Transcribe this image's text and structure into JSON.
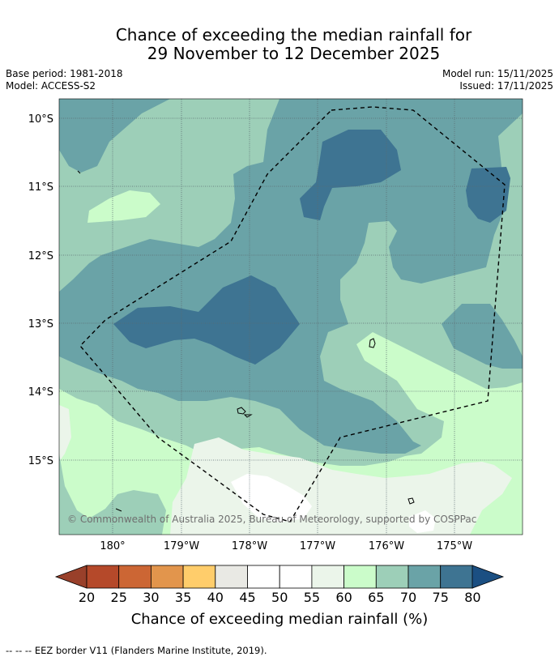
{
  "title": {
    "line1": "Chance of exceeding the median rainfall for",
    "line2": "29 November to 12 December 2025"
  },
  "meta": {
    "base_period": "Base period: 1981-2018",
    "model": "Model: ACCESS-S2",
    "model_run": "Model run: 15/11/2025",
    "issued": "Issued: 17/11/2025"
  },
  "map": {
    "lat_labels": [
      "10°S",
      "11°S",
      "12°S",
      "13°S",
      "14°S",
      "15°S"
    ],
    "lon_labels": [
      "180°",
      "179°W",
      "178°W",
      "177°W",
      "176°W",
      "175°W"
    ],
    "copyright": "© Commonwealth of Australia 2025, Bureau of Meteorology, supported by COSPPac",
    "legend_label": "EEZ border V11 (Flanders Marine Institute, 2019)."
  },
  "colorbar": {
    "ticks": [
      "20",
      "25",
      "30",
      "35",
      "40",
      "45",
      "50",
      "55",
      "60",
      "65",
      "70",
      "75",
      "80"
    ],
    "colors": [
      "#b5492a",
      "#cc6634",
      "#e2954c",
      "#ffcd6b",
      "#e9e9e4",
      "#ffffff",
      "#ffffff",
      "#ebf5ea",
      "#cbfcca",
      "#9dcfb8",
      "#6aa3a7",
      "#3e7492"
    ],
    "under_color": "#99402a",
    "over_color": "#1b4f82",
    "label": "Chance of exceeding median rainfall (%)"
  },
  "colors": {
    "c65_70": "#9dcfb8",
    "c70_75": "#6aa3a7",
    "c75_80": "#3e7492",
    "c60_65": "#cbfcca",
    "c55_60": "#ebf5ea",
    "c50_55": "#ffffff"
  }
}
